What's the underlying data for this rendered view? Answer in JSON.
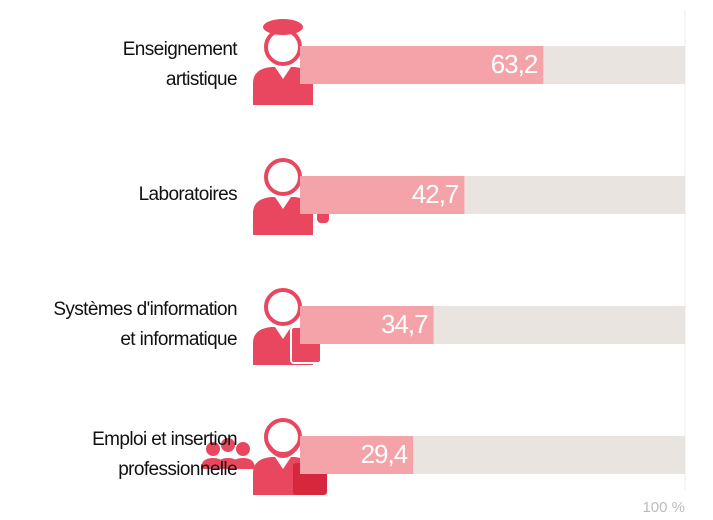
{
  "chart_data": {
    "type": "bar",
    "categories": [
      [
        "Enseignement",
        "artistique"
      ],
      [
        "Laboratoires"
      ],
      [
        "Systèmes d'information",
        "et informatique"
      ],
      [
        "Emploi et insertion",
        "professionnelle"
      ]
    ],
    "values": [
      63.2,
      42.7,
      34.7,
      29.4
    ],
    "value_labels": [
      "63,2",
      "42,7",
      "34,7",
      "29,4"
    ],
    "color": "#f4a3a8",
    "track_color": "#e9e4e0",
    "xlim": [
      0,
      100
    ],
    "xticks": [
      {
        "value": 100,
        "label": "100 %"
      }
    ]
  }
}
